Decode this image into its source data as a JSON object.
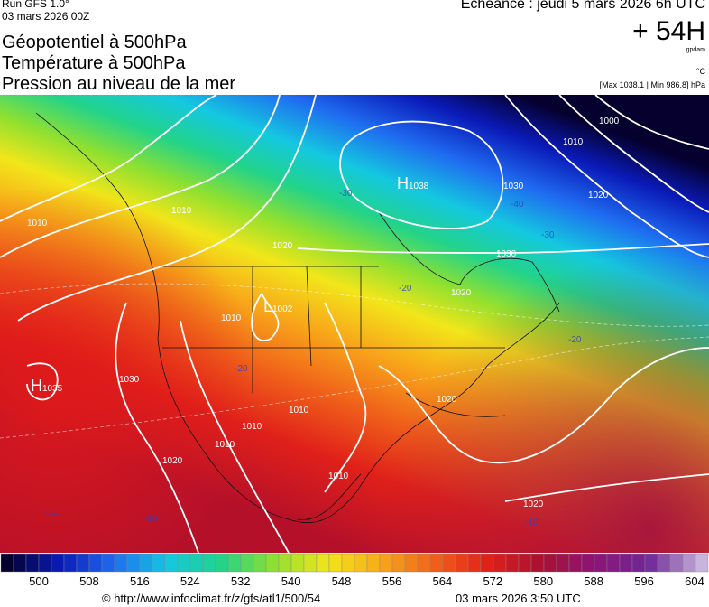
{
  "header": {
    "run": "Run GFS 1.0°",
    "run_date": "03 mars 2026 00Z",
    "valid": "Echéance : jeudi 5 mars 2026 6h UTC",
    "lead": "+ 54H",
    "height_unit": "gpdam",
    "temp_unit": "°C",
    "pressure_range": "[Max 1038.1 | Min 986.8] hPa",
    "titles": [
      "Géopotentiel à 500hPa",
      "Température à 500hPa",
      "Pression au niveau de la mer"
    ]
  },
  "map": {
    "centers": [
      {
        "letter": "H",
        "value": "1038"
      },
      {
        "letter": "L",
        "value": "1002"
      },
      {
        "letter": "H",
        "value": "1035"
      }
    ],
    "contour_labels": [
      "1000",
      "1010",
      "1020",
      "1030",
      "1030",
      "1010",
      "1010",
      "1020",
      "1010",
      "1030",
      "1020",
      "1010",
      "1010",
      "1020",
      "1010",
      "1020",
      "1010",
      "1020"
    ],
    "temperature_labels": [
      "-40",
      "-30",
      "-30",
      "-20",
      "-20",
      "-10",
      "-10",
      "-10",
      "-20"
    ]
  },
  "colorbar": {
    "labels": [
      500,
      508,
      516,
      524,
      532,
      540,
      548,
      556,
      564,
      572,
      580,
      588,
      596,
      604
    ]
  },
  "footer": {
    "url": "© http://www.infoclimat.fr/z/gfs/atl1/500/54",
    "generated": "03 mars 2026  3:50 UTC"
  }
}
